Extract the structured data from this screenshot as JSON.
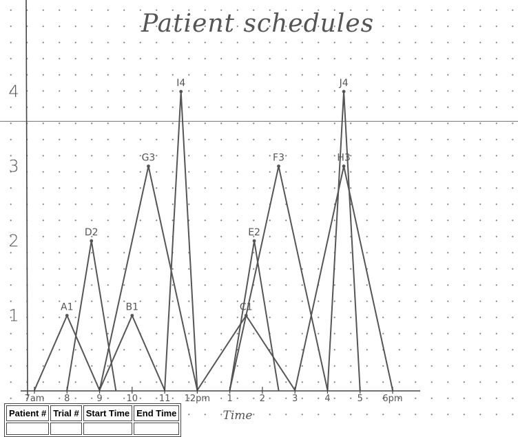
{
  "title": "Patient schedules",
  "chart_data": {
    "type": "line",
    "title": "Patient schedules",
    "xlabel": "Time",
    "ylabel": "",
    "x_ticks": [
      {
        "value": 7,
        "label": "7am"
      },
      {
        "value": 8,
        "label": "8"
      },
      {
        "value": 9,
        "label": "9"
      },
      {
        "value": 10,
        "label": "10"
      },
      {
        "value": 11,
        "label": "11"
      },
      {
        "value": 12,
        "label": "12pm"
      },
      {
        "value": 13,
        "label": "1"
      },
      {
        "value": 14,
        "label": "2"
      },
      {
        "value": 15,
        "label": "3"
      },
      {
        "value": 16,
        "label": "4"
      },
      {
        "value": 17,
        "label": "5"
      },
      {
        "value": 18,
        "label": "6pm"
      }
    ],
    "y_ticks": [
      1,
      2,
      3,
      4
    ],
    "xlim": [
      7,
      18.5
    ],
    "ylim": [
      0,
      4.4
    ],
    "reference_line_y": 3.6,
    "grid": "dotted",
    "series": [
      {
        "name": "A1",
        "points": [
          [
            7,
            0
          ],
          [
            8,
            1
          ],
          [
            9,
            0
          ]
        ]
      },
      {
        "name": "B1",
        "points": [
          [
            9,
            0
          ],
          [
            10,
            1
          ],
          [
            11,
            0
          ]
        ]
      },
      {
        "name": "C1",
        "points": [
          [
            12,
            0
          ],
          [
            13.5,
            1
          ],
          [
            15,
            0
          ]
        ]
      },
      {
        "name": "D2",
        "points": [
          [
            8,
            0
          ],
          [
            8.75,
            2
          ],
          [
            9.5,
            0
          ]
        ]
      },
      {
        "name": "E2",
        "points": [
          [
            13,
            0
          ],
          [
            13.75,
            2
          ],
          [
            14.5,
            0
          ]
        ]
      },
      {
        "name": "F3",
        "points": [
          [
            13,
            0
          ],
          [
            14.5,
            3
          ],
          [
            16,
            0
          ]
        ]
      },
      {
        "name": "G3",
        "points": [
          [
            9,
            0
          ],
          [
            10.5,
            3
          ],
          [
            12,
            0
          ]
        ]
      },
      {
        "name": "H3",
        "points": [
          [
            15,
            0
          ],
          [
            16.5,
            3
          ],
          [
            18,
            0
          ]
        ]
      },
      {
        "name": "I4",
        "points": [
          [
            11,
            0
          ],
          [
            11.5,
            4
          ],
          [
            12,
            0
          ]
        ]
      },
      {
        "name": "J4",
        "points": [
          [
            16,
            0
          ],
          [
            16.5,
            4
          ],
          [
            17,
            0
          ]
        ]
      }
    ],
    "point_labels": [
      {
        "text": "A1",
        "x": 8,
        "y": 1
      },
      {
        "text": "B1",
        "x": 10,
        "y": 1
      },
      {
        "text": "C1",
        "x": 13.5,
        "y": 1
      },
      {
        "text": "D2",
        "x": 8.75,
        "y": 2
      },
      {
        "text": "E2",
        "x": 13.75,
        "y": 2
      },
      {
        "text": "F3",
        "x": 14.5,
        "y": 3
      },
      {
        "text": "G3",
        "x": 10.5,
        "y": 3
      },
      {
        "text": "H3",
        "x": 16.5,
        "y": 3
      },
      {
        "text": "I4",
        "x": 11.5,
        "y": 4
      },
      {
        "text": "J4",
        "x": 16.5,
        "y": 4
      }
    ]
  },
  "table": {
    "headers": [
      "Patient #",
      "Trial #",
      "Start Time",
      "End Time"
    ]
  },
  "colors": {
    "ink": "#555555",
    "axis": "#444444",
    "paper": "#ffffff",
    "grid_dot": "#7a7a7a"
  }
}
